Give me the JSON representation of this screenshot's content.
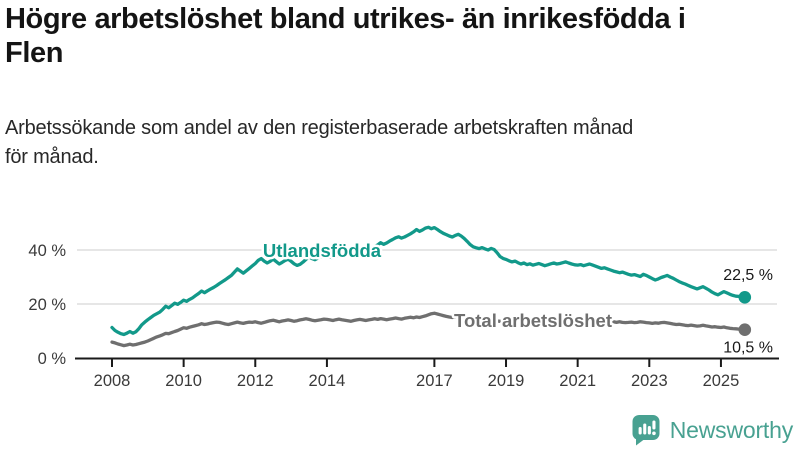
{
  "header": {
    "title": "Högre arbetslöshet bland utrikes- än inrikesfödda i Flen",
    "title_lines": [
      "Högre arbetslöshet bland utrikes- än inrikesfödda i",
      "Flen"
    ],
    "subtitle": "Arbetssökande som andel av den registerbaserade arbetskraften månad för månad.",
    "subtitle_lines": [
      "Arbetssökande som andel av den registerbaserade arbetskraften månad",
      "för månad."
    ]
  },
  "footer": {
    "brand": "Newsworthy",
    "logo_icon": "bar-chart-speech-bubble-icon"
  },
  "colors": {
    "accent_teal": "#12998a",
    "line_gray": "#6f6f6f",
    "gridline": "#d8d8d8",
    "axis": "#1a1a1a",
    "brand_teal": "#48a191",
    "title_text": "#141414",
    "tick_text": "#3a3a3a"
  },
  "chart_data": {
    "type": "line",
    "title": "Högre arbetslöshet bland utrikes- än inrikesfödda i Flen",
    "subtitle": "Arbetssökande som andel av den registerbaserade arbetskraften månad för månad.",
    "x_unit": "month",
    "x_start": "2008-01",
    "x_end": "2025-09",
    "xticks": [
      2008,
      2010,
      2012,
      2014,
      2017,
      2019,
      2021,
      2023,
      2025
    ],
    "yticks": [
      {
        "value": 0,
        "label": "0 %"
      },
      {
        "value": 20,
        "label": "20 %"
      },
      {
        "value": 40,
        "label": "40 %"
      }
    ],
    "ylim": [
      0,
      52
    ],
    "grid": "horizontal",
    "legend_position": "inline-labels",
    "series": [
      {
        "name": "Utlandsfödda",
        "color": "#12998a",
        "end_label": "22,5 %",
        "end_value": 22.5,
        "values": [
          11.3,
          10.2,
          9.5,
          9.0,
          8.7,
          9.2,
          9.8,
          9.2,
          9.7,
          10.9,
          12.3,
          13.3,
          14.2,
          15.0,
          15.8,
          16.4,
          17.0,
          18.0,
          19.2,
          18.6,
          19.4,
          20.3,
          19.9,
          20.6,
          21.4,
          21.0,
          21.7,
          22.3,
          23.1,
          23.9,
          24.8,
          24.2,
          24.9,
          25.5,
          26.1,
          26.8,
          27.6,
          28.3,
          29.0,
          29.8,
          30.6,
          31.8,
          33.0,
          32.2,
          31.4,
          32.3,
          33.2,
          34.1,
          35.0,
          36.2,
          36.8,
          35.9,
          35.2,
          35.8,
          36.6,
          35.7,
          34.8,
          35.4,
          36.1,
          36.6,
          35.8,
          34.9,
          34.3,
          34.7,
          35.5,
          36.5,
          37.5,
          36.8,
          36.4,
          37.0,
          37.4,
          37.7,
          37.8,
          37.4,
          37.1,
          37.5,
          38.0,
          38.5,
          39.0,
          38.4,
          38.1,
          38.6,
          39.1,
          39.4,
          39.7,
          40.2,
          40.0,
          40.6,
          41.2,
          41.9,
          42.7,
          42.1,
          42.6,
          43.3,
          43.9,
          44.5,
          44.9,
          44.4,
          44.8,
          45.4,
          46.0,
          46.7,
          47.6,
          46.9,
          47.4,
          48.1,
          48.4,
          47.9,
          48.3,
          47.6,
          46.8,
          46.2,
          45.7,
          45.2,
          44.8,
          45.4,
          45.8,
          45.2,
          44.3,
          43.2,
          42.0,
          41.2,
          40.8,
          40.5,
          40.9,
          40.4,
          40.0,
          40.6,
          40.2,
          39.0,
          37.6,
          36.9,
          36.5,
          36.0,
          35.6,
          35.9,
          35.3,
          34.8,
          35.2,
          34.6,
          34.9,
          34.4,
          34.7,
          35.0,
          34.6,
          34.2,
          34.5,
          34.9,
          35.2,
          34.8,
          35.0,
          35.3,
          35.6,
          35.2,
          34.8,
          34.5,
          34.4,
          34.6,
          34.2,
          34.5,
          34.8,
          34.4,
          34.0,
          33.6,
          33.2,
          33.4,
          33.0,
          32.6,
          32.2,
          31.9,
          31.6,
          31.8,
          31.4,
          31.0,
          30.7,
          30.9,
          30.5,
          30.2,
          31.0,
          30.6,
          30.0,
          29.4,
          28.9,
          29.3,
          29.8,
          30.2,
          30.6,
          30.0,
          29.5,
          28.9,
          28.3,
          27.8,
          27.4,
          26.9,
          26.4,
          26.0,
          25.6,
          26.0,
          26.4,
          25.8,
          25.2,
          24.4,
          23.8,
          23.4,
          24.0,
          24.6,
          24.1,
          23.6,
          23.2,
          22.9,
          22.8,
          22.6,
          22.5
        ]
      },
      {
        "name": "Total arbetslöshet",
        "color": "#6f6f6f",
        "end_label": "10,5 %",
        "end_value": 10.5,
        "values": [
          5.9,
          5.6,
          5.2,
          4.9,
          4.6,
          4.8,
          5.1,
          4.8,
          5.0,
          5.3,
          5.6,
          5.9,
          6.3,
          6.8,
          7.3,
          7.8,
          8.2,
          8.6,
          9.1,
          9.0,
          9.4,
          9.8,
          10.2,
          10.7,
          11.2,
          11.0,
          11.4,
          11.7,
          12.0,
          12.3,
          12.7,
          12.4,
          12.6,
          12.9,
          13.1,
          13.3,
          13.2,
          12.9,
          12.6,
          12.4,
          12.7,
          13.0,
          13.3,
          13.0,
          12.8,
          13.1,
          13.3,
          13.2,
          13.4,
          13.1,
          12.9,
          13.2,
          13.5,
          13.8,
          14.0,
          13.7,
          13.4,
          13.7,
          13.9,
          14.1,
          13.9,
          13.6,
          13.8,
          14.1,
          14.3,
          14.5,
          14.3,
          14.0,
          13.8,
          14.0,
          14.2,
          14.4,
          14.3,
          14.1,
          13.9,
          14.2,
          14.4,
          14.2,
          14.0,
          13.8,
          13.6,
          13.9,
          14.1,
          14.3,
          14.1,
          13.9,
          14.1,
          14.3,
          14.5,
          14.3,
          14.6,
          14.4,
          14.2,
          14.4,
          14.6,
          14.8,
          14.6,
          14.4,
          14.7,
          14.9,
          15.1,
          14.9,
          15.2,
          15.0,
          15.3,
          15.6,
          16.0,
          16.4,
          16.6,
          16.3,
          16.0,
          15.7,
          15.4,
          15.2,
          15.0,
          15.2,
          15.0,
          14.8,
          14.6,
          14.4,
          14.2,
          14.0,
          13.9,
          14.1,
          14.0,
          13.8,
          13.9,
          14.1,
          13.9,
          13.7,
          13.6,
          13.8,
          13.9,
          13.7,
          13.6,
          13.8,
          13.6,
          13.5,
          13.7,
          13.5,
          13.6,
          13.8,
          13.9,
          14.0,
          14.1,
          14.0,
          14.3,
          14.7,
          15.0,
          14.8,
          14.6,
          14.4,
          14.2,
          14.0,
          13.9,
          14.1,
          14.2,
          14.0,
          13.8,
          13.9,
          13.7,
          13.8,
          13.6,
          13.4,
          13.2,
          13.3,
          13.1,
          13.2,
          13.4,
          13.2,
          13.4,
          13.2,
          13.1,
          13.2,
          13.3,
          13.1,
          13.2,
          13.4,
          13.3,
          13.1,
          13.0,
          12.8,
          13.0,
          12.9,
          13.1,
          13.2,
          13.0,
          12.8,
          12.6,
          12.4,
          12.5,
          12.3,
          12.1,
          12.0,
          12.2,
          12.0,
          11.8,
          11.9,
          12.1,
          11.9,
          11.7,
          11.5,
          11.6,
          11.4,
          11.3,
          11.5,
          11.2,
          11.0,
          10.9,
          10.8,
          10.7,
          10.6,
          10.5
        ]
      }
    ]
  }
}
